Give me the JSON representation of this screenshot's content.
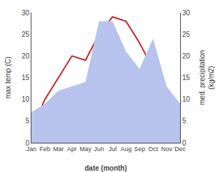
{
  "chart_data": {
    "type": "line",
    "categories": [
      "Jan",
      "Feb",
      "Mar",
      "Apr",
      "May",
      "Jun",
      "Jul",
      "Aug",
      "Sep",
      "Oct",
      "Nov",
      "Dec"
    ],
    "series": [
      {
        "type": "area",
        "color": "#b8c4ee",
        "axis": "y2",
        "values": [
          7,
          9,
          12,
          13,
          14,
          28,
          28,
          21,
          17,
          24,
          13,
          9
        ]
      },
      {
        "type": "line",
        "color": "#cc2222",
        "values": [
          3,
          10,
          15,
          20,
          19,
          25,
          29,
          28,
          23,
          17,
          9,
          9
        ]
      }
    ],
    "xlabel": "date (month)",
    "ylabel": "max temp (C)",
    "y2label": "med. precipitation\n(kg/m2)",
    "ylim": [
      0,
      30
    ],
    "yticks": [
      0,
      5,
      10,
      15,
      20,
      25,
      30
    ],
    "y2lim": [
      0,
      30
    ],
    "y2ticks": [
      0,
      5,
      10,
      15,
      20,
      25,
      30
    ],
    "grid": false
  }
}
